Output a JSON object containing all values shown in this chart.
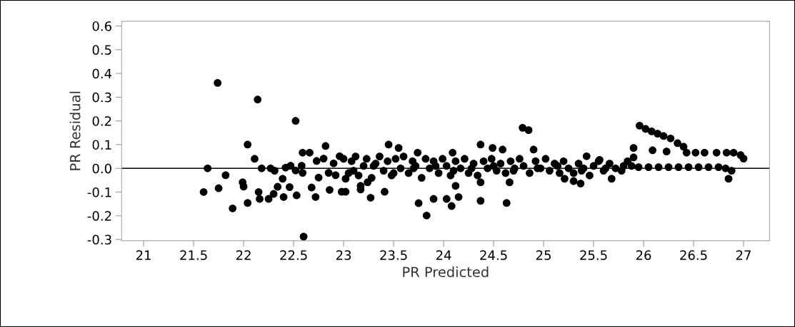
{
  "chart_data": {
    "type": "scatter",
    "xlabel": "PR Predicted",
    "ylabel": "PR Residual",
    "xlim": [
      20.78,
      27.26
    ],
    "ylim": [
      -0.305,
      0.62
    ],
    "xticks": [
      21,
      21.5,
      22,
      22.5,
      23,
      23.5,
      24,
      24.5,
      25,
      25.5,
      26,
      26.5,
      27
    ],
    "yticks": [
      {
        "value": -0.3,
        "label": "-0.3"
      },
      {
        "value": -0.2,
        "label": "-0.2"
      },
      {
        "value": -0.1,
        "label": "-0.1"
      },
      {
        "value": 0,
        "label": "0.0"
      },
      0.1,
      0.2,
      0.3,
      0.4,
      0.5,
      0.6
    ],
    "grid": false,
    "marker": "circle",
    "ref_lines": [
      {
        "axis": "y",
        "value": 0,
        "color": "#000000"
      }
    ],
    "series": [
      {
        "color": "#000000",
        "x": [
          21.6,
          21.64,
          21.74,
          21.75,
          21.82,
          21.89,
          21.99,
          22.0,
          22.04,
          22.04,
          22.11,
          22.14,
          22.15,
          22.16,
          22.18,
          22.25,
          22.27,
          22.31,
          22.3,
          22.34,
          22.39,
          22.4,
          22.42,
          22.47,
          22.46,
          22.53,
          22.52,
          22.52,
          22.59,
          22.59,
          22.66,
          22.58,
          22.6,
          22.68,
          22.72,
          22.75,
          22.73,
          22.82,
          22.8,
          22.9,
          22.96,
          22.86,
          22.85,
          22.92,
          22.98,
          23.02,
          23.02,
          23.17,
          23.17,
          23.24,
          23.27,
          23.41,
          23.45,
          23.55,
          23.75,
          23.83,
          23.9,
          24.03,
          24.08,
          24.12,
          24.15,
          24.37,
          24.37,
          24.37,
          24.49,
          24.59,
          24.63,
          24.66,
          24.79,
          24.85,
          24.9,
          23.74,
          24.09,
          23.0,
          23.05,
          23.08,
          23.12,
          23.15,
          23.2,
          23.23,
          23.28,
          23.32,
          23.36,
          23.4,
          23.44,
          23.48,
          23.52,
          23.57,
          23.6,
          23.65,
          23.69,
          23.72,
          23.78,
          23.82,
          23.86,
          23.9,
          23.95,
          23.99,
          24.03,
          24.07,
          24.12,
          24.17,
          24.21,
          24.25,
          24.3,
          24.34,
          24.4,
          24.44,
          24.48,
          24.53,
          24.57,
          24.62,
          24.67,
          24.71,
          24.76,
          24.8,
          24.86,
          24.92,
          24.97,
          25.02,
          25.06,
          25.11,
          25.16,
          25.2,
          25.25,
          25.3,
          25.35,
          25.4,
          25.46,
          25.5,
          25.55,
          25.6,
          25.66,
          25.72,
          25.78,
          25.84,
          25.88,
          23.1,
          23.3,
          23.5,
          23.7,
          23.92,
          24.1,
          24.28,
          24.5,
          24.7,
          24.94,
          25.14,
          25.38,
          25.62,
          25.8,
          25.21,
          25.3,
          25.37,
          25.43,
          25.56,
          25.68,
          25.9,
          25.9,
          25.96,
          26.02,
          26.08,
          26.14,
          26.2,
          26.27,
          26.34,
          26.4,
          26.43,
          26.52,
          26.61,
          26.73,
          26.83,
          26.9,
          26.97,
          27.0,
          26.09,
          26.23,
          25.95,
          26.05,
          26.15,
          26.25,
          26.35,
          26.45,
          26.55,
          26.65,
          26.75,
          26.82,
          26.85,
          26.88
        ],
        "values": [
          -0.1,
          0.0,
          0.36,
          -0.084,
          -0.029,
          -0.169,
          -0.059,
          -0.077,
          -0.146,
          0.1,
          0.04,
          0.29,
          -0.1,
          -0.129,
          0.0,
          -0.129,
          0.0,
          -0.01,
          -0.108,
          -0.078,
          -0.044,
          -0.121,
          0.003,
          0.011,
          -0.079,
          -0.114,
          0.2,
          -0.009,
          -0.019,
          0.066,
          0.066,
          0.011,
          -0.288,
          -0.081,
          -0.121,
          -0.039,
          0.031,
          0.094,
          0.041,
          0.021,
          0.051,
          -0.091,
          -0.019,
          -0.029,
          -0.099,
          -0.099,
          -0.044,
          -0.089,
          -0.074,
          -0.059,
          -0.124,
          -0.099,
          0.1,
          0.086,
          -0.147,
          -0.199,
          -0.129,
          -0.129,
          -0.159,
          -0.074,
          -0.121,
          0.1,
          -0.059,
          -0.137,
          0.086,
          0.079,
          -0.146,
          -0.059,
          0.171,
          0.161,
          0.079,
          0.066,
          0.066,
          0.04,
          -0.02,
          0.03,
          0.05,
          -0.03,
          0.01,
          0.04,
          -0.04,
          0.02,
          0.05,
          -0.01,
          0.03,
          -0.03,
          0.04,
          0.0,
          0.05,
          -0.02,
          0.03,
          0.01,
          -0.04,
          0.04,
          0.0,
          0.03,
          -0.02,
          0.04,
          0.01,
          -0.03,
          0.03,
          0.0,
          0.04,
          -0.02,
          0.02,
          -0.03,
          0.03,
          0.0,
          0.04,
          -0.01,
          0.02,
          -0.02,
          0.03,
          0.0,
          0.04,
          0.01,
          -0.02,
          0.03,
          0.0,
          0.04,
          -0.01,
          0.02,
          -0.02,
          0.03,
          0.0,
          -0.02,
          0.02,
          0.0,
          -0.03,
          0.01,
          0.03,
          -0.01,
          0.02,
          0.0,
          -0.01,
          0.03,
          0.01,
          -0.01,
          0.01,
          -0.02,
          0.0,
          0.01,
          -0.01,
          0.0,
          0.01,
          -0.01,
          0.0,
          0.01,
          -0.01,
          0.0,
          0.01,
          -0.044,
          -0.054,
          -0.064,
          0.051,
          0.036,
          -0.044,
          0.086,
          0.046,
          0.18,
          0.166,
          0.156,
          0.146,
          0.136,
          0.126,
          0.106,
          0.091,
          0.066,
          0.066,
          0.066,
          0.066,
          0.066,
          0.066,
          0.056,
          0.041,
          0.076,
          0.071,
          0.005,
          0.005,
          0.005,
          0.005,
          0.005,
          0.005,
          0.005,
          0.005,
          0.005,
          0.0,
          -0.044,
          -0.01
        ]
      }
    ]
  }
}
